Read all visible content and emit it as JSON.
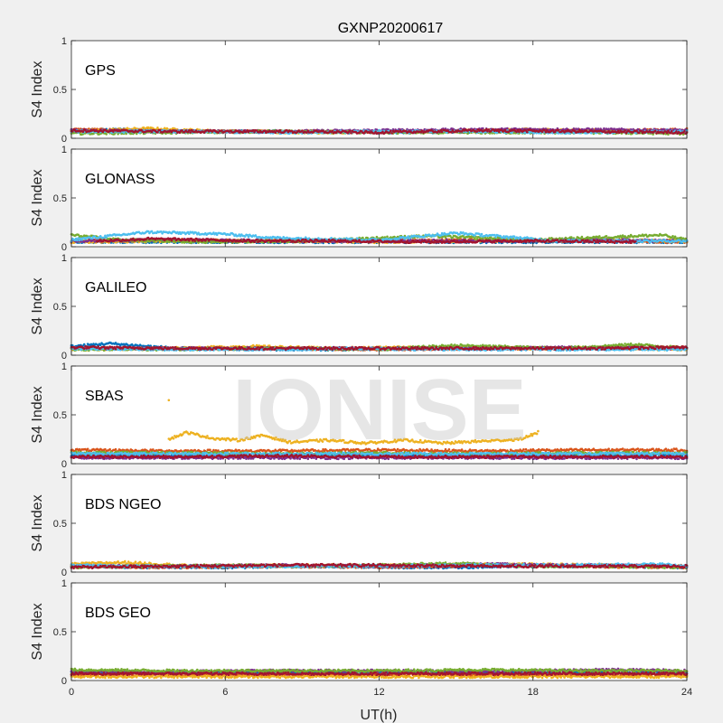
{
  "title": "GXNP20200617",
  "watermark": "IONISE",
  "xlabel": "UT(h)",
  "ylabel": "S4 Index",
  "xticks": [
    "0",
    "6",
    "12",
    "18",
    "24"
  ],
  "yticks": [
    "0",
    "0.5",
    "1"
  ],
  "colors": [
    "#0072BD",
    "#D95319",
    "#EDB120",
    "#7E2F8E",
    "#77AC30",
    "#4DBEEE",
    "#A2142F"
  ],
  "chart_data": [
    {
      "type": "scatter",
      "name": "GPS",
      "xlim": [
        0,
        24
      ],
      "ylim": [
        0,
        1
      ],
      "series": [
        {
          "color": "#0072BD",
          "x": [
            0,
            2,
            4,
            8,
            12,
            16,
            20,
            24
          ],
          "y": [
            0.08,
            0.09,
            0.07,
            0.07,
            0.06,
            0.07,
            0.07,
            0.08
          ]
        },
        {
          "color": "#D95319",
          "x": [
            0,
            3,
            6,
            10,
            14,
            18,
            22,
            24
          ],
          "y": [
            0.09,
            0.08,
            0.07,
            0.07,
            0.07,
            0.08,
            0.08,
            0.09
          ]
        },
        {
          "color": "#EDB120",
          "x": [
            0,
            3,
            6,
            10,
            14,
            18,
            22,
            24
          ],
          "y": [
            0.07,
            0.1,
            0.07,
            0.06,
            0.07,
            0.09,
            0.07,
            0.07
          ]
        },
        {
          "color": "#7E2F8E",
          "x": [
            0,
            4,
            8,
            12,
            16,
            20,
            24
          ],
          "y": [
            0.08,
            0.07,
            0.07,
            0.08,
            0.09,
            0.09,
            0.08
          ]
        },
        {
          "color": "#77AC30",
          "x": [
            0,
            4,
            8,
            12,
            16,
            20,
            24
          ],
          "y": [
            0.05,
            0.06,
            0.07,
            0.06,
            0.06,
            0.06,
            0.05
          ]
        },
        {
          "color": "#4DBEEE",
          "x": [
            0,
            4,
            8,
            12,
            16,
            20,
            24
          ],
          "y": [
            0.07,
            0.07,
            0.06,
            0.07,
            0.07,
            0.06,
            0.07
          ]
        },
        {
          "color": "#A2142F",
          "x": [
            0,
            4,
            8,
            12,
            16,
            20,
            24
          ],
          "y": [
            0.08,
            0.07,
            0.07,
            0.06,
            0.08,
            0.07,
            0.06
          ]
        }
      ]
    },
    {
      "type": "scatter",
      "name": "GLONASS",
      "xlim": [
        0,
        24
      ],
      "ylim": [
        0,
        1
      ],
      "series": [
        {
          "color": "#0072BD",
          "x": [
            0,
            4,
            8,
            12,
            16,
            20,
            24
          ],
          "y": [
            0.05,
            0.05,
            0.05,
            0.05,
            0.05,
            0.05,
            0.05
          ]
        },
        {
          "color": "#D95319",
          "x": [
            0,
            4,
            8,
            12,
            16,
            20,
            24
          ],
          "y": [
            0.06,
            0.07,
            0.06,
            0.06,
            0.07,
            0.06,
            0.05
          ]
        },
        {
          "color": "#EDB120",
          "x": [
            0,
            4,
            8,
            12,
            16,
            20,
            24
          ],
          "y": [
            0.05,
            0.06,
            0.06,
            0.05,
            0.06,
            0.07,
            0.06
          ]
        },
        {
          "color": "#7E2F8E",
          "x": [
            0,
            4,
            8,
            12,
            16,
            20,
            24
          ],
          "y": [
            0.06,
            0.07,
            0.06,
            0.06,
            0.06,
            0.07,
            0.06
          ]
        },
        {
          "color": "#77AC30",
          "x": [
            0,
            2,
            5,
            9,
            14,
            18,
            23,
            24
          ],
          "y": [
            0.12,
            0.07,
            0.05,
            0.06,
            0.11,
            0.07,
            0.12,
            0.07
          ]
        },
        {
          "color": "#4DBEEE",
          "x": [
            0,
            3,
            6,
            8,
            12,
            15,
            19,
            24
          ],
          "y": [
            0.07,
            0.15,
            0.13,
            0.09,
            0.07,
            0.14,
            0.06,
            0.06
          ]
        },
        {
          "color": "#A2142F",
          "x": [
            1,
            3,
            5,
            7,
            10,
            14,
            18,
            22
          ],
          "y": [
            0.06,
            0.08,
            0.07,
            0.06,
            0.06,
            0.05,
            0.06,
            0.05
          ]
        }
      ]
    },
    {
      "type": "scatter",
      "name": "GALILEO",
      "xlim": [
        0,
        24
      ],
      "ylim": [
        0,
        1
      ],
      "series": [
        {
          "color": "#0072BD",
          "x": [
            0,
            1.5,
            4,
            8,
            12,
            16,
            20,
            24
          ],
          "y": [
            0.09,
            0.12,
            0.07,
            0.06,
            0.06,
            0.07,
            0.07,
            0.07
          ]
        },
        {
          "color": "#D95319",
          "x": [
            0,
            4,
            8,
            12,
            16,
            20,
            24
          ],
          "y": [
            0.07,
            0.07,
            0.07,
            0.06,
            0.07,
            0.07,
            0.08
          ]
        },
        {
          "color": "#EDB120",
          "x": [
            0,
            4,
            7,
            10,
            13,
            17,
            21,
            24
          ],
          "y": [
            0.06,
            0.07,
            0.09,
            0.07,
            0.08,
            0.07,
            0.07,
            0.06
          ]
        },
        {
          "color": "#7E2F8E",
          "x": [
            0,
            4,
            8,
            12,
            16,
            20,
            24
          ],
          "y": [
            0.07,
            0.07,
            0.07,
            0.07,
            0.07,
            0.08,
            0.07
          ]
        },
        {
          "color": "#77AC30",
          "x": [
            0,
            4,
            8,
            12,
            15,
            19,
            22,
            24
          ],
          "y": [
            0.06,
            0.06,
            0.07,
            0.06,
            0.1,
            0.07,
            0.11,
            0.07
          ]
        },
        {
          "color": "#4DBEEE",
          "x": [
            0,
            4,
            8,
            11,
            14,
            18,
            22,
            24
          ],
          "y": [
            0.07,
            0.06,
            0.06,
            0.07,
            0.06,
            0.06,
            0.06,
            0.06
          ]
        },
        {
          "color": "#A2142F",
          "x": [
            0,
            4,
            8,
            12,
            16,
            20,
            24
          ],
          "y": [
            0.08,
            0.07,
            0.07,
            0.07,
            0.07,
            0.07,
            0.08
          ]
        }
      ]
    },
    {
      "type": "scatter",
      "name": "SBAS",
      "xlim": [
        0,
        24
      ],
      "ylim": [
        0,
        1
      ],
      "series": [
        {
          "color": "#0072BD",
          "x": [
            0,
            4,
            8,
            12,
            16,
            20,
            24
          ],
          "y": [
            0.09,
            0.08,
            0.08,
            0.09,
            0.08,
            0.08,
            0.09
          ]
        },
        {
          "color": "#D95319",
          "x": [
            0,
            4,
            8,
            12,
            16,
            20,
            24
          ],
          "y": [
            0.14,
            0.13,
            0.13,
            0.14,
            0.13,
            0.14,
            0.14
          ]
        },
        {
          "color": "#EDB120",
          "x": [
            3.8,
            4.5,
            5.5,
            6.5,
            7.5,
            8.5,
            10,
            11.5,
            13,
            14.5,
            16,
            17.5,
            18.2
          ],
          "y": [
            0.25,
            0.32,
            0.26,
            0.24,
            0.29,
            0.22,
            0.24,
            0.21,
            0.24,
            0.21,
            0.23,
            0.25,
            0.32
          ]
        },
        {
          "color": "#EDB120",
          "x": [
            3.8
          ],
          "y": [
            0.65
          ]
        },
        {
          "color": "#7E2F8E",
          "x": [
            0,
            4,
            8,
            12,
            16,
            20,
            24
          ],
          "y": [
            0.06,
            0.06,
            0.06,
            0.06,
            0.06,
            0.06,
            0.06
          ]
        },
        {
          "color": "#77AC30",
          "x": [
            0,
            4,
            8,
            12,
            16,
            20,
            24
          ],
          "y": [
            0.11,
            0.11,
            0.1,
            0.11,
            0.1,
            0.11,
            0.11
          ]
        },
        {
          "color": "#4DBEEE",
          "x": [
            0,
            4,
            8,
            12,
            16,
            20,
            24
          ],
          "y": [
            0.1,
            0.1,
            0.1,
            0.1,
            0.1,
            0.1,
            0.1
          ]
        },
        {
          "color": "#A2142F",
          "x": [
            0,
            4,
            8,
            12,
            16,
            20,
            24
          ],
          "y": [
            0.07,
            0.07,
            0.08,
            0.07,
            0.07,
            0.07,
            0.07
          ]
        }
      ]
    },
    {
      "type": "scatter",
      "name": "BDS NGEO",
      "xlim": [
        0,
        24
      ],
      "ylim": [
        0,
        1
      ],
      "series": [
        {
          "color": "#0072BD",
          "x": [
            0,
            3,
            6,
            9,
            12,
            15,
            18,
            21,
            24
          ],
          "y": [
            0.06,
            0.05,
            0.05,
            0.06,
            0.05,
            0.05,
            0.06,
            0.06,
            0.05
          ]
        },
        {
          "color": "#D95319",
          "x": [
            0,
            4,
            8,
            12,
            16,
            20,
            24
          ],
          "y": [
            0.06,
            0.05,
            0.06,
            0.05,
            0.07,
            0.06,
            0.05
          ]
        },
        {
          "color": "#EDB120",
          "x": [
            0,
            2,
            5,
            9,
            13,
            17,
            21,
            24
          ],
          "y": [
            0.08,
            0.1,
            0.06,
            0.07,
            0.07,
            0.08,
            0.07,
            0.06
          ]
        },
        {
          "color": "#7E2F8E",
          "x": [
            0,
            4,
            8,
            12,
            16,
            20,
            24
          ],
          "y": [
            0.06,
            0.06,
            0.07,
            0.06,
            0.08,
            0.07,
            0.06
          ]
        },
        {
          "color": "#77AC30",
          "x": [
            0,
            3,
            6,
            9,
            12,
            15,
            18,
            21,
            24
          ],
          "y": [
            0.05,
            0.06,
            0.07,
            0.06,
            0.07,
            0.09,
            0.06,
            0.06,
            0.05
          ]
        },
        {
          "color": "#4DBEEE",
          "x": [
            0,
            3,
            7,
            11,
            15,
            19,
            23,
            24
          ],
          "y": [
            0.07,
            0.06,
            0.06,
            0.06,
            0.07,
            0.07,
            0.08,
            0.06
          ]
        },
        {
          "color": "#A2142F",
          "x": [
            0,
            4,
            8,
            12,
            16,
            20,
            24
          ],
          "y": [
            0.05,
            0.06,
            0.07,
            0.07,
            0.06,
            0.06,
            0.06
          ]
        }
      ]
    },
    {
      "type": "scatter",
      "name": "BDS GEO",
      "xlim": [
        0,
        24
      ],
      "ylim": [
        0,
        1
      ],
      "series": [
        {
          "color": "#0072BD",
          "x": [
            0,
            4,
            8,
            12,
            16,
            20,
            24
          ],
          "y": [
            0.08,
            0.08,
            0.08,
            0.08,
            0.08,
            0.08,
            0.08
          ]
        },
        {
          "color": "#D95319",
          "x": [
            0,
            4,
            8,
            12,
            16,
            20,
            24
          ],
          "y": [
            0.06,
            0.06,
            0.06,
            0.06,
            0.06,
            0.06,
            0.06
          ]
        },
        {
          "color": "#EDB120",
          "x": [
            0,
            4,
            8,
            12,
            16,
            20,
            24
          ],
          "y": [
            0.04,
            0.04,
            0.04,
            0.04,
            0.04,
            0.04,
            0.04
          ]
        },
        {
          "color": "#7E2F8E",
          "x": [
            0,
            4,
            8,
            12,
            16,
            21,
            24
          ],
          "y": [
            0.09,
            0.09,
            0.1,
            0.1,
            0.09,
            0.11,
            0.1
          ]
        },
        {
          "color": "#77AC30",
          "x": [
            0,
            4,
            8,
            12,
            16,
            20,
            24
          ],
          "y": [
            0.11,
            0.1,
            0.1,
            0.1,
            0.11,
            0.1,
            0.1
          ]
        },
        {
          "color": "#A2142F",
          "x": [
            0,
            4,
            8,
            12,
            16,
            20,
            24
          ],
          "y": [
            0.07,
            0.07,
            0.07,
            0.07,
            0.07,
            0.07,
            0.07
          ]
        }
      ]
    }
  ]
}
